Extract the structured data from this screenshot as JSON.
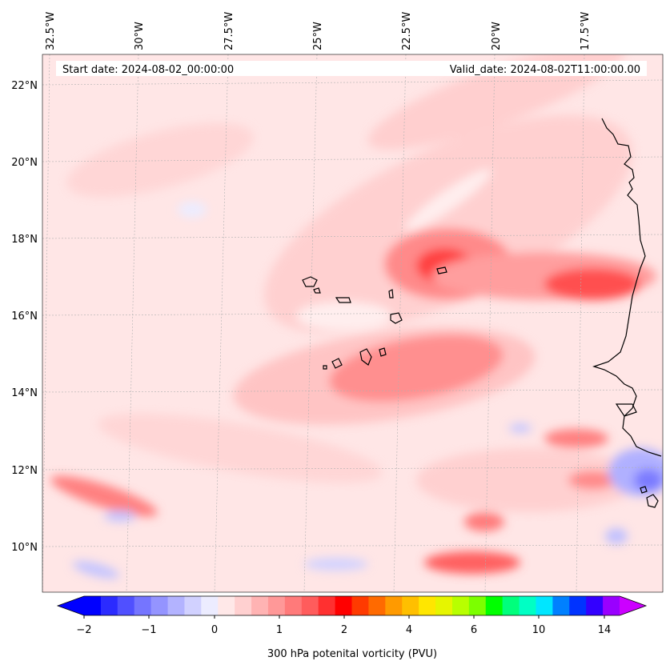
{
  "header": {
    "start_date": "Start date: 2024-08-02_00:00:00",
    "valid_date": "Valid_date: 2024-08-02T11:00:00.00"
  },
  "map": {
    "lon_labels": [
      "32.5°W",
      "30°W",
      "27.5°W",
      "25°W",
      "22.5°W",
      "20°W",
      "17.5°W"
    ],
    "lat_labels": [
      "22°N",
      "20°N",
      "18°N",
      "16°N",
      "14°N",
      "12°N",
      "10°N"
    ],
    "field": "300 hPa potenital vorticity",
    "features": [
      {
        "name": "pv-max-north",
        "lon": -21.8,
        "lat": 17.2,
        "value": 2.4
      },
      {
        "name": "pv-max-coast",
        "lon": -17.2,
        "lat": 16.8,
        "value": 2.0
      },
      {
        "name": "pv-band-south",
        "lon": -21.2,
        "lat": 14.6,
        "value": 1.3
      },
      {
        "name": "pv-max-sw",
        "lon": -31.2,
        "lat": 11.3,
        "value": 1.3
      },
      {
        "name": "pv-max-south",
        "lon": -21.0,
        "lat": 9.6,
        "value": 1.6
      },
      {
        "name": "pv-min-east",
        "lon": -15.5,
        "lat": 12.0,
        "value": -1.0
      }
    ]
  },
  "colorbar": {
    "label": "300 hPa potenital vorticity (PVU)",
    "ticks": [
      "−2",
      "−1",
      "0",
      "1",
      "2",
      "4",
      "6",
      "10",
      "14"
    ],
    "colors": [
      "#0000ff",
      "#2b2bff",
      "#5050ff",
      "#7575ff",
      "#9494ff",
      "#b3b3ff",
      "#d1d1ff",
      "#ececff",
      "#ffe8e8",
      "#ffd0d0",
      "#ffb3b3",
      "#ff9898",
      "#ff7a7a",
      "#ff5c5c",
      "#ff3030",
      "#ff0000",
      "#ff3a00",
      "#ff6a00",
      "#ff9a00",
      "#ffbf00",
      "#ffe600",
      "#e6f500",
      "#b8ff00",
      "#7cff00",
      "#00ff00",
      "#00ff7c",
      "#00ffc4",
      "#00e6ff",
      "#0080ff",
      "#0033ff",
      "#3300ff",
      "#9900ff"
    ],
    "extend_low_color": "#0000ff",
    "extend_high_color": "#cc00ff"
  }
}
